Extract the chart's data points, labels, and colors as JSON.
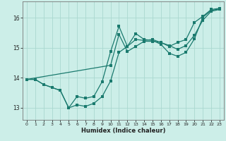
{
  "xlabel": "Humidex (Indice chaleur)",
  "bg_color": "#cceee8",
  "line_color": "#1a7a6e",
  "grid_color": "#aad8d0",
  "xlim": [
    -0.5,
    23.5
  ],
  "ylim": [
    12.6,
    16.55
  ],
  "yticks": [
    13,
    14,
    15,
    16
  ],
  "xticks": [
    0,
    1,
    2,
    3,
    4,
    5,
    6,
    7,
    8,
    9,
    10,
    11,
    12,
    13,
    14,
    15,
    16,
    17,
    18,
    19,
    20,
    21,
    22,
    23
  ],
  "line1_x": [
    0,
    1,
    2,
    3,
    4,
    5,
    6,
    7,
    8,
    9,
    10,
    11,
    12,
    13,
    14,
    15,
    16,
    17,
    18,
    19,
    20,
    21,
    22,
    23
  ],
  "line1_y": [
    13.95,
    13.95,
    13.78,
    13.68,
    13.58,
    13.0,
    13.1,
    13.05,
    13.15,
    13.38,
    13.9,
    14.85,
    15.05,
    15.48,
    15.28,
    15.25,
    15.12,
    14.82,
    14.72,
    14.85,
    15.3,
    16.02,
    16.25,
    16.3
  ],
  "line2_x": [
    0,
    1,
    2,
    3,
    4,
    5,
    6,
    7,
    8,
    9,
    10,
    11,
    12,
    13,
    14,
    15,
    16,
    17,
    18,
    19,
    20,
    21,
    22,
    23
  ],
  "line2_y": [
    13.95,
    13.95,
    13.78,
    13.68,
    13.58,
    13.0,
    13.38,
    13.32,
    13.38,
    13.88,
    14.88,
    15.72,
    15.05,
    15.28,
    15.25,
    15.28,
    15.18,
    15.05,
    15.18,
    15.28,
    15.85,
    16.05,
    16.28,
    16.32
  ],
  "line3_x": [
    0,
    10,
    11,
    12,
    13,
    14,
    15,
    16,
    17,
    18,
    19,
    20,
    21,
    22,
    23
  ],
  "line3_y": [
    13.95,
    14.42,
    15.45,
    14.88,
    15.05,
    15.22,
    15.22,
    15.18,
    15.08,
    14.95,
    15.08,
    15.42,
    15.92,
    16.22,
    16.28
  ]
}
